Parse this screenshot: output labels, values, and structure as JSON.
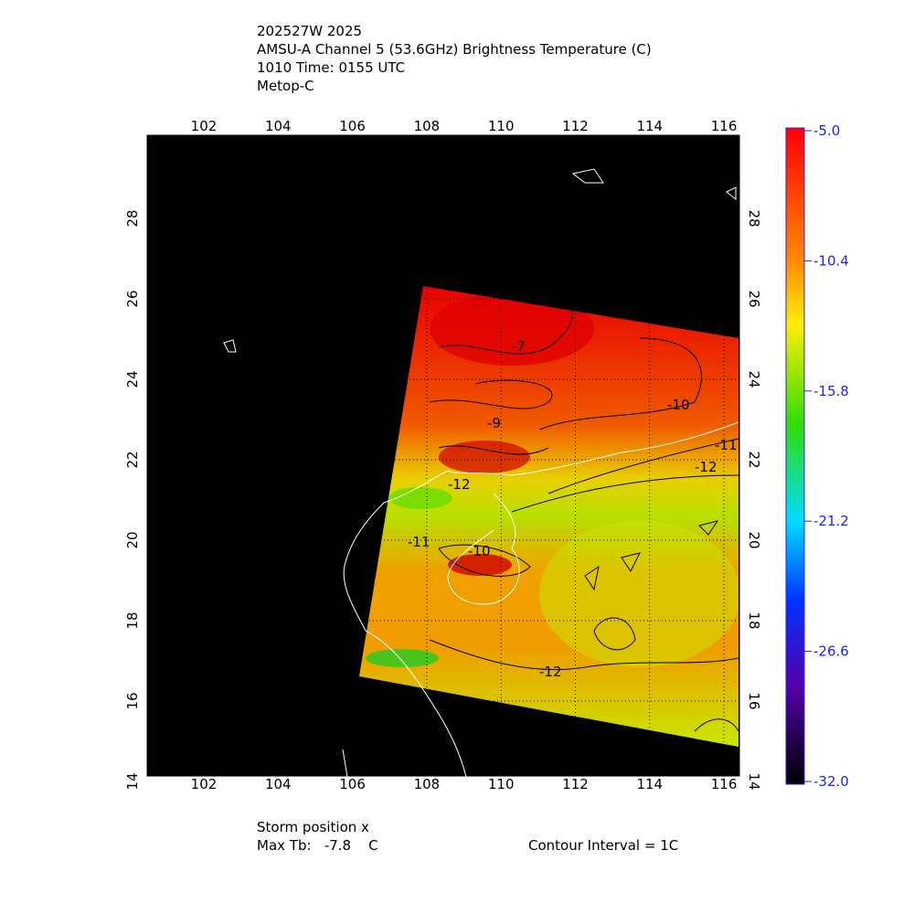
{
  "header": {
    "lines": [
      "202527W 2025",
      "AMSU-A Channel 5 (53.6GHz) Brightness Temperature (C)",
      "1010 Time: 0155 UTC",
      "Metop-C"
    ]
  },
  "map": {
    "lon_ticks": [
      102,
      104,
      106,
      108,
      110,
      112,
      114,
      116
    ],
    "lat_ticks": [
      14,
      16,
      18,
      20,
      22,
      24,
      26,
      28
    ],
    "contour_labels": [
      "-7",
      "-9",
      "-10",
      "-11",
      "-12",
      "-12",
      "-10",
      "-11",
      "-12"
    ]
  },
  "colorbar": {
    "ticks": [
      {
        "value": -5,
        "label": "-5.0"
      },
      {
        "value": -10.4,
        "label": "-10.4"
      },
      {
        "value": -15.8,
        "label": "-15.8"
      },
      {
        "value": -21.2,
        "label": "-21.2"
      },
      {
        "value": -26.6,
        "label": "-26.6"
      },
      {
        "value": -32,
        "label": "-32.0"
      }
    ]
  },
  "footer": {
    "storm_position": "Storm position x",
    "max_tb": "Max Tb:   -7.8    C",
    "contour_interval": "Contour Interval = 1C"
  }
}
